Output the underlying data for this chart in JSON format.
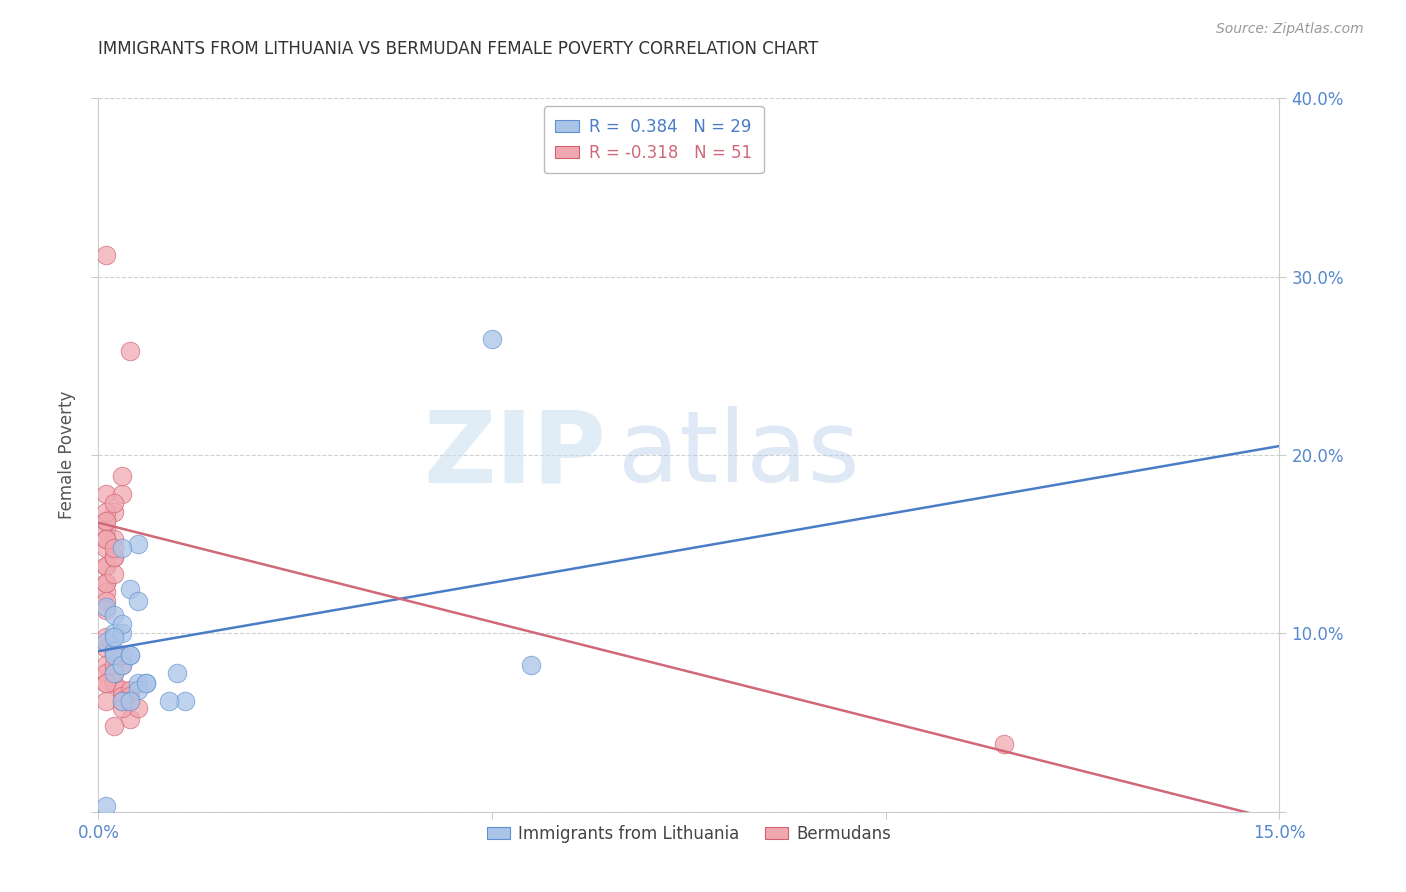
{
  "title": "IMMIGRANTS FROM LITHUANIA VS BERMUDAN FEMALE POVERTY CORRELATION CHART",
  "source": "Source: ZipAtlas.com",
  "ylabel": "Female Poverty",
  "xlim": [
    0.0,
    0.15
  ],
  "ylim": [
    0.0,
    0.4
  ],
  "background_color": "#ffffff",
  "grid_color": "#d0d0d0",
  "watermark_zip": "ZIP",
  "watermark_atlas": "atlas",
  "blue_color": "#aac4e8",
  "pink_color": "#f0a8b0",
  "blue_edge_color": "#6090d0",
  "pink_edge_color": "#d06070",
  "blue_line_color": "#4a7cc7",
  "pink_line_color": "#d06878",
  "lith_x": [
    0.001,
    0.002,
    0.001,
    0.002,
    0.002,
    0.003,
    0.003,
    0.002,
    0.002,
    0.003,
    0.004,
    0.004,
    0.005,
    0.003,
    0.004,
    0.002,
    0.005,
    0.006,
    0.005,
    0.003,
    0.005,
    0.006,
    0.004,
    0.01,
    0.011,
    0.009,
    0.055,
    0.05,
    0.001
  ],
  "lith_y": [
    0.115,
    0.11,
    0.095,
    0.1,
    0.09,
    0.1,
    0.105,
    0.088,
    0.078,
    0.082,
    0.088,
    0.088,
    0.15,
    0.148,
    0.125,
    0.098,
    0.072,
    0.072,
    0.068,
    0.062,
    0.118,
    0.072,
    0.062,
    0.078,
    0.062,
    0.062,
    0.082,
    0.265,
    0.003
  ],
  "berm_x": [
    0.001,
    0.001,
    0.001,
    0.002,
    0.001,
    0.001,
    0.001,
    0.002,
    0.001,
    0.001,
    0.002,
    0.001,
    0.001,
    0.002,
    0.003,
    0.001,
    0.002,
    0.001,
    0.001,
    0.002,
    0.003,
    0.001,
    0.001,
    0.002,
    0.001,
    0.001,
    0.002,
    0.001,
    0.001,
    0.002,
    0.001,
    0.001,
    0.002,
    0.003,
    0.003,
    0.002,
    0.003,
    0.003,
    0.004,
    0.003,
    0.004,
    0.003,
    0.004,
    0.004,
    0.005,
    0.002,
    0.001,
    0.003,
    0.004,
    0.115,
    0.001
  ],
  "berm_y": [
    0.138,
    0.178,
    0.158,
    0.168,
    0.163,
    0.148,
    0.128,
    0.153,
    0.123,
    0.138,
    0.143,
    0.128,
    0.118,
    0.133,
    0.178,
    0.168,
    0.173,
    0.163,
    0.153,
    0.143,
    0.188,
    0.312,
    0.153,
    0.148,
    0.113,
    0.092,
    0.088,
    0.082,
    0.078,
    0.082,
    0.098,
    0.072,
    0.078,
    0.082,
    0.088,
    0.072,
    0.068,
    0.065,
    0.068,
    0.062,
    0.065,
    0.062,
    0.052,
    0.062,
    0.058,
    0.048,
    0.062,
    0.058,
    0.258,
    0.038,
    0.072
  ],
  "blue_trendline_x": [
    0.0,
    0.15
  ],
  "blue_trendline_y": [
    0.09,
    0.205
  ],
  "pink_trendline_x": [
    0.0,
    0.15
  ],
  "pink_trendline_y": [
    0.162,
    -0.005
  ]
}
